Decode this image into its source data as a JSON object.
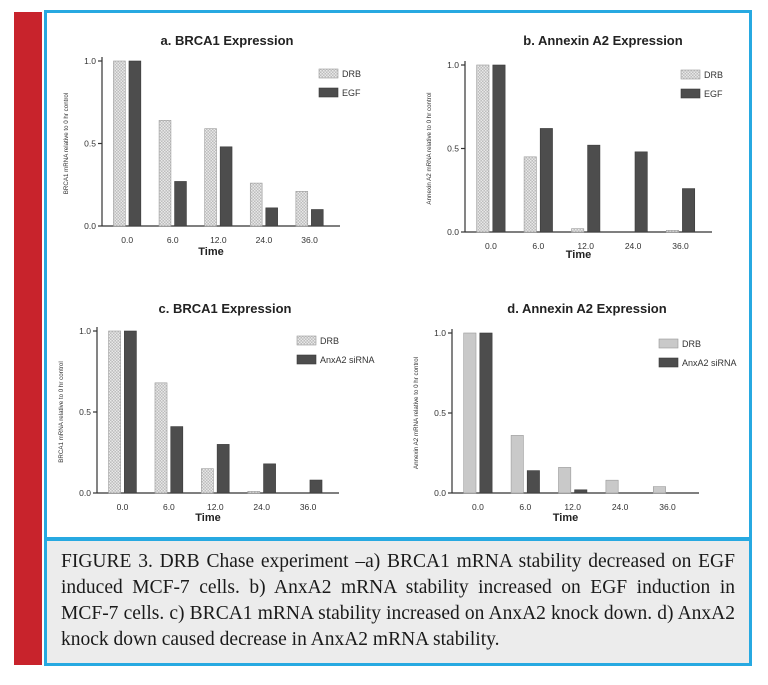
{
  "caption": "FIGURE 3. DRB Chase experiment –a) BRCA1 mRNA stability decreased on EGF induced MCF-7 cells. b) AnxA2 mRNA stability increased on EGF induction in MCF-7 cells. c) BRCA1 mRNA stability increased on AnxA2 knock down. d) AnxA2 knock down caused decrease in AnxA2 mRNA stability.",
  "colors": {
    "accent": "#27a9e1",
    "side_bar": "#c8232c",
    "caption_bg": "#ececec",
    "series_light": "#c9c9c9",
    "series_dark": "#4d4d4d"
  },
  "chart_data": [
    {
      "type": "bar",
      "title": "a. BRCA1 Expression",
      "xlabel": "Time",
      "ylabel": "BRCA1 mRNA relative to 0 hr control",
      "categories": [
        "0.0",
        "6.0",
        "12.0",
        "24.0",
        "36.0"
      ],
      "yticks": [
        "0.0",
        "0.5",
        "1.0"
      ],
      "ylim": [
        0,
        1.0
      ],
      "legend_position": "right",
      "series": [
        {
          "name": "DRB",
          "values": [
            1.0,
            0.64,
            0.59,
            0.26,
            0.21
          ]
        },
        {
          "name": "EGF",
          "values": [
            1.0,
            0.27,
            0.48,
            0.11,
            0.1
          ]
        }
      ]
    },
    {
      "type": "bar",
      "title": "b. Annexin A2 Expression",
      "xlabel": "Time",
      "ylabel": "Annexin A2 mRNA relative to 0 hr control",
      "categories": [
        "0.0",
        "6.0",
        "12.0",
        "24.0",
        "36.0"
      ],
      "yticks": [
        "0.0",
        "0.5",
        "1.0"
      ],
      "ylim": [
        0,
        1.0
      ],
      "legend_position": "right",
      "series": [
        {
          "name": "DRB",
          "values": [
            1.0,
            0.45,
            0.02,
            0.0,
            0.01
          ]
        },
        {
          "name": "EGF",
          "values": [
            1.0,
            0.62,
            0.52,
            0.48,
            0.26
          ]
        }
      ]
    },
    {
      "type": "bar",
      "title": "c. BRCA1 Expression",
      "xlabel": "Time",
      "ylabel": "BRCA1 mRNA relative to 0 hr control",
      "categories": [
        "0.0",
        "6.0",
        "12.0",
        "24.0",
        "36.0"
      ],
      "yticks": [
        "0.0",
        "0.5",
        "1.0"
      ],
      "ylim": [
        0,
        1.0
      ],
      "legend_position": "right",
      "series": [
        {
          "name": "DRB",
          "values": [
            1.0,
            0.68,
            0.15,
            0.01,
            0.0
          ]
        },
        {
          "name": "AnxA2 siRNA",
          "values": [
            1.0,
            0.41,
            0.3,
            0.18,
            0.08
          ]
        }
      ]
    },
    {
      "type": "bar",
      "title": "d. Annexin A2 Expression",
      "xlabel": "Time",
      "ylabel": "Annexin A2 mRNA relative to 0 hr control",
      "categories": [
        "0.0",
        "6.0",
        "12.0",
        "24.0",
        "36.0"
      ],
      "yticks": [
        "0.0",
        "0.5",
        "1.0"
      ],
      "ylim": [
        0,
        1.0
      ],
      "legend_position": "right",
      "series": [
        {
          "name": "DRB",
          "values": [
            1.0,
            0.36,
            0.16,
            0.08,
            0.04
          ]
        },
        {
          "name": "AnxA2 siRNA",
          "values": [
            1.0,
            0.14,
            0.02,
            0.0,
            0.0
          ]
        }
      ]
    }
  ]
}
